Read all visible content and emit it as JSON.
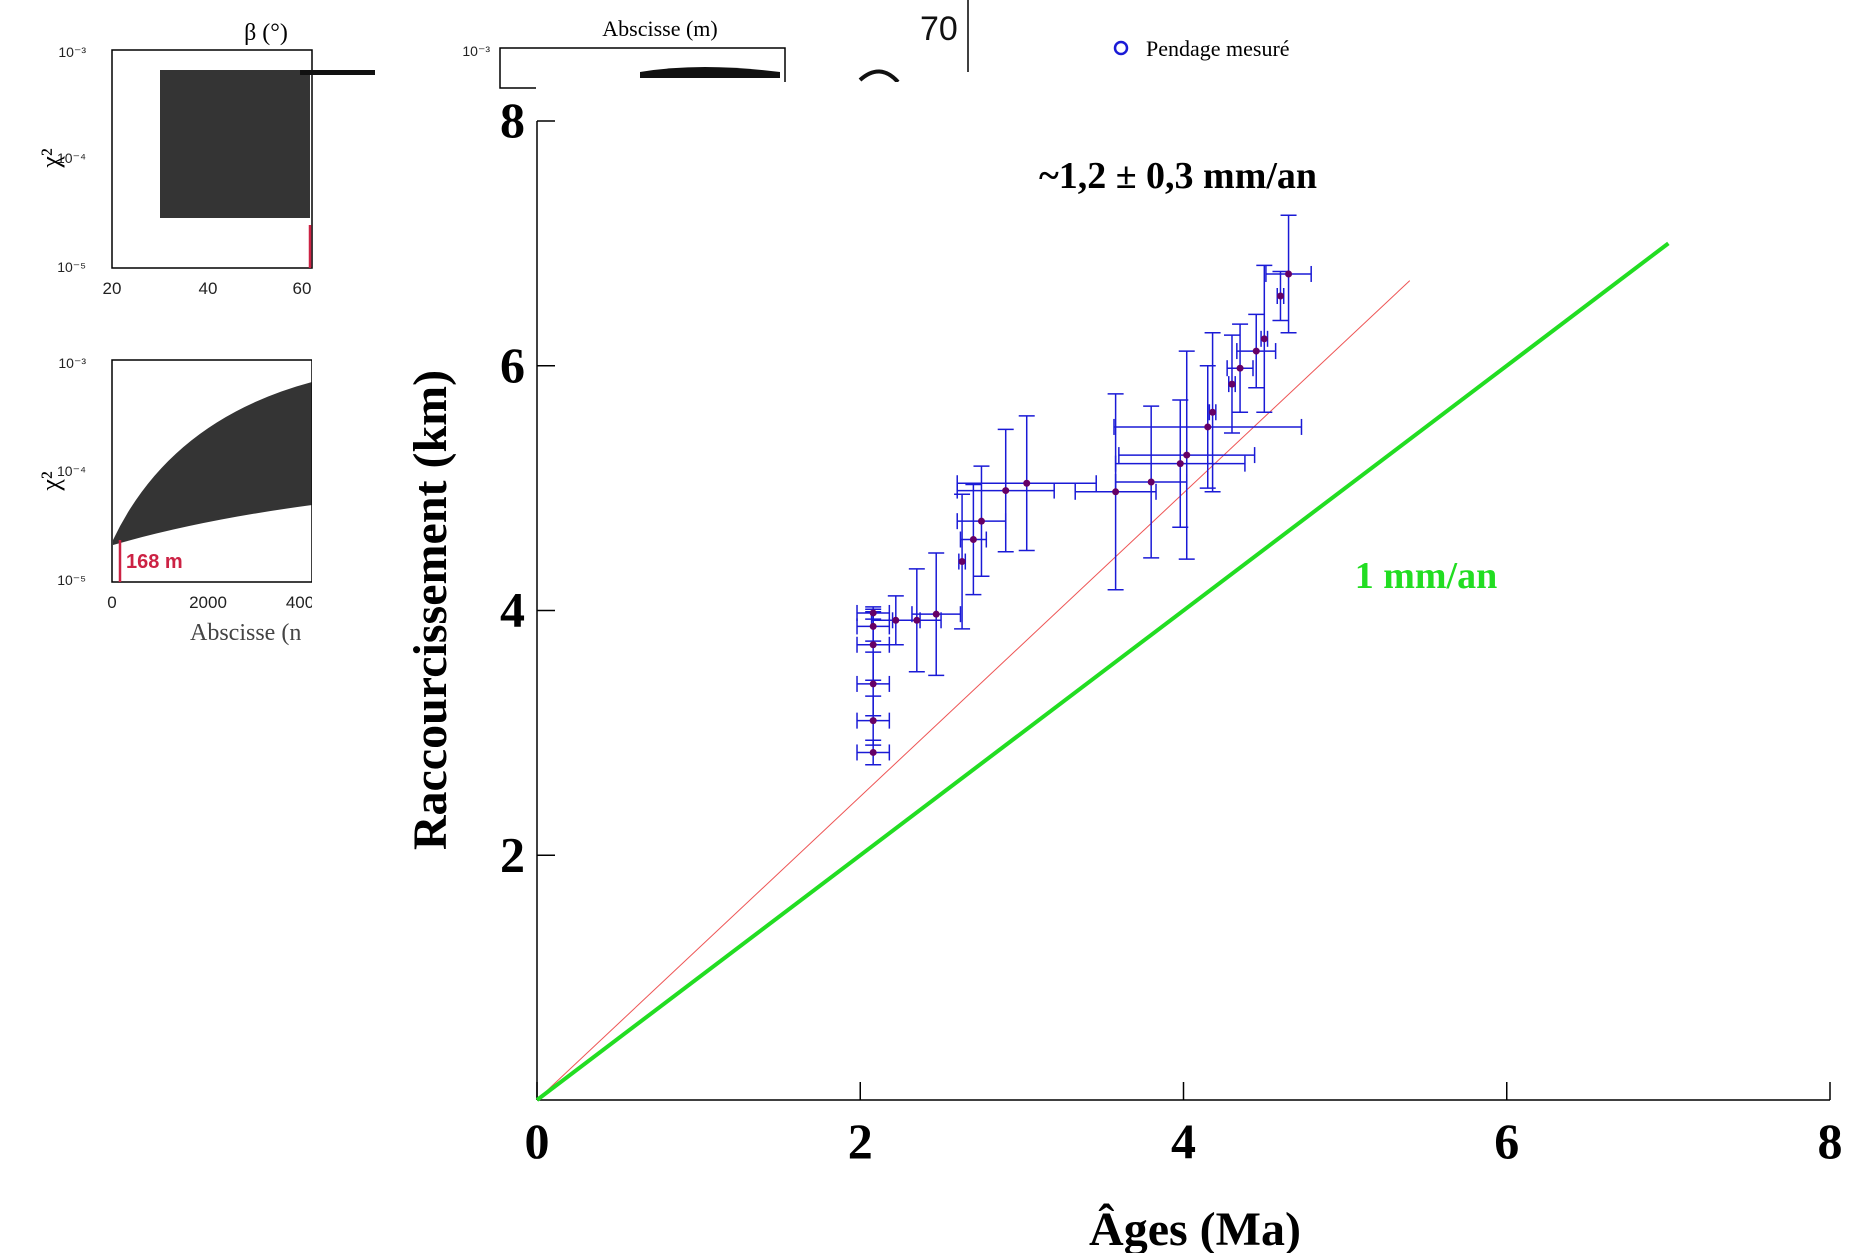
{
  "background_panels": {
    "top_left": {
      "title": "β (°)",
      "ylabel": "χ²",
      "yticks": [
        "10⁻³",
        "10⁻⁴",
        "10⁻⁵"
      ],
      "xticks": [
        "20",
        "40",
        "60"
      ]
    },
    "top_middle": {
      "title": "Abscisse (m)",
      "yticks": [
        "10⁻³"
      ]
    },
    "top_right_fragment": {
      "tick": "70"
    },
    "legend_item": "Pendage mesuré",
    "bottom_left": {
      "ylabel": "χ²",
      "yticks": [
        "10⁻³",
        "10⁻⁴",
        "10⁻⁵"
      ],
      "xticks": [
        "0",
        "2000",
        "400"
      ],
      "xlabel": "Abscisse (n",
      "annotation": "168 m"
    }
  },
  "chart_data": {
    "type": "scatter",
    "xlabel": "Âges (Ma)",
    "ylabel": "Raccourcissement (km)",
    "xlim": [
      0,
      8
    ],
    "ylim": [
      0,
      8
    ],
    "xticks": [
      "0",
      "2",
      "4",
      "6",
      "8"
    ],
    "yticks": [
      "2",
      "4",
      "6",
      "8"
    ],
    "annotations": [
      {
        "text": "~1,2 ± 0,3 mm/an",
        "color": "#000000"
      },
      {
        "text": "1 mm/an",
        "color": "#22dd22"
      }
    ],
    "reference_lines": [
      {
        "label": "~1,2 ± 0,3 mm/an",
        "slope": 1.24,
        "x_end": 5.4,
        "color": "#ee5555"
      },
      {
        "label": "1 mm/an",
        "slope": 1.0,
        "x_end": 7.0,
        "color": "#22dd22"
      }
    ],
    "point_color": "#660066",
    "errorbar_color": "#1a1ad6",
    "points": [
      {
        "x": 2.08,
        "y": 2.84,
        "xerr": 0.1,
        "yerr": 0.1
      },
      {
        "x": 2.08,
        "y": 3.1,
        "xerr": 0.1,
        "yerr": 0.2
      },
      {
        "x": 2.08,
        "y": 3.4,
        "xerr": 0.1,
        "yerr": 0.26
      },
      {
        "x": 2.08,
        "y": 3.72,
        "xerr": 0.1,
        "yerr": 0.29
      },
      {
        "x": 2.08,
        "y": 3.87,
        "xerr": 0.1,
        "yerr": 0.12
      },
      {
        "x": 2.08,
        "y": 3.98,
        "xerr": 0.1,
        "yerr": 0.05
      },
      {
        "x": 2.22,
        "y": 3.92,
        "xerr": 0.15,
        "yerr": 0.2
      },
      {
        "x": 2.35,
        "y": 3.92,
        "xerr": 0.15,
        "yerr": 0.42
      },
      {
        "x": 2.47,
        "y": 3.97,
        "xerr": 0.15,
        "yerr": 0.5
      },
      {
        "x": 2.63,
        "y": 4.4,
        "xerr": 0.02,
        "yerr": 0.55
      },
      {
        "x": 2.7,
        "y": 4.58,
        "xerr": 0.08,
        "yerr": 0.45
      },
      {
        "x": 2.75,
        "y": 4.73,
        "xerr": 0.15,
        "yerr": 0.45
      },
      {
        "x": 2.9,
        "y": 4.98,
        "xerr": 0.3,
        "yerr": 0.5
      },
      {
        "x": 3.03,
        "y": 5.04,
        "xerr": 0.43,
        "yerr": 0.55
      },
      {
        "x": 3.58,
        "y": 4.97,
        "xerr": 0.25,
        "yerr": 0.8
      },
      {
        "x": 3.8,
        "y": 5.05,
        "xerr": 0.22,
        "yerr": 0.62
      },
      {
        "x": 3.98,
        "y": 5.2,
        "xerr": 0.4,
        "yerr": 0.52
      },
      {
        "x": 4.02,
        "y": 5.27,
        "xerr": 0.42,
        "yerr": 0.85
      },
      {
        "x": 4.15,
        "y": 5.5,
        "xerr": 0.58,
        "yerr": 0.5
      },
      {
        "x": 4.18,
        "y": 5.62,
        "xerr": 0.02,
        "yerr": 0.65
      },
      {
        "x": 4.3,
        "y": 5.85,
        "xerr": 0.02,
        "yerr": 0.4
      },
      {
        "x": 4.35,
        "y": 5.98,
        "xerr": 0.08,
        "yerr": 0.36
      },
      {
        "x": 4.45,
        "y": 6.12,
        "xerr": 0.12,
        "yerr": 0.3
      },
      {
        "x": 4.5,
        "y": 6.22,
        "xerr": 0.02,
        "yerr": 0.6
      },
      {
        "x": 4.6,
        "y": 6.57,
        "xerr": 0.02,
        "yerr": 0.2
      },
      {
        "x": 4.65,
        "y": 6.75,
        "xerr": 0.14,
        "yerr": 0.48
      }
    ]
  }
}
